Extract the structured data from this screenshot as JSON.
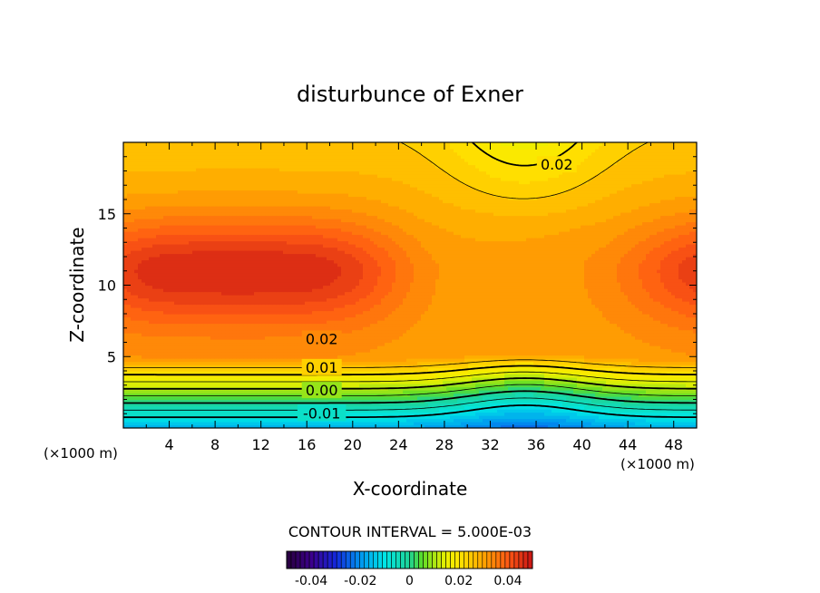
{
  "chart_data": {
    "type": "contour",
    "title": "disturbunce of Exner",
    "xlabel": "X-coordinate",
    "ylabel": "Z-coordinate",
    "x_unit_left": "(×1000 m)",
    "x_unit_right": "(×1000 m)",
    "xlim": [
      0,
      50
    ],
    "ylim": [
      0,
      20
    ],
    "x_ticks": [
      4,
      8,
      12,
      16,
      20,
      24,
      28,
      32,
      36,
      40,
      44,
      48
    ],
    "y_ticks": [
      5,
      10,
      15
    ],
    "contour_interval_text": "CONTOUR INTERVAL = 5.000E-03",
    "contour_levels": [
      -0.01,
      -0.005,
      0.0,
      0.005,
      0.01,
      0.015,
      0.02,
      0.025
    ],
    "contour_labels": [
      {
        "text": "0.02",
        "x": 37.8,
        "z": 18.4
      },
      {
        "text": "0.02",
        "x": 17.3,
        "z": 6.2
      },
      {
        "text": "0.01",
        "x": 17.3,
        "z": 4.2
      },
      {
        "text": "0.00",
        "x": 17.3,
        "z": 2.6
      },
      {
        "text": "-0.01",
        "x": 17.3,
        "z": 1.0
      }
    ],
    "colorbar": {
      "range": [
        -0.05,
        0.05
      ],
      "tick_labels": [
        "-0.04",
        "-0.02",
        "0",
        "0.02",
        "0.04"
      ],
      "tick_values": [
        -0.04,
        -0.02,
        0.0,
        0.02,
        0.04
      ]
    }
  }
}
